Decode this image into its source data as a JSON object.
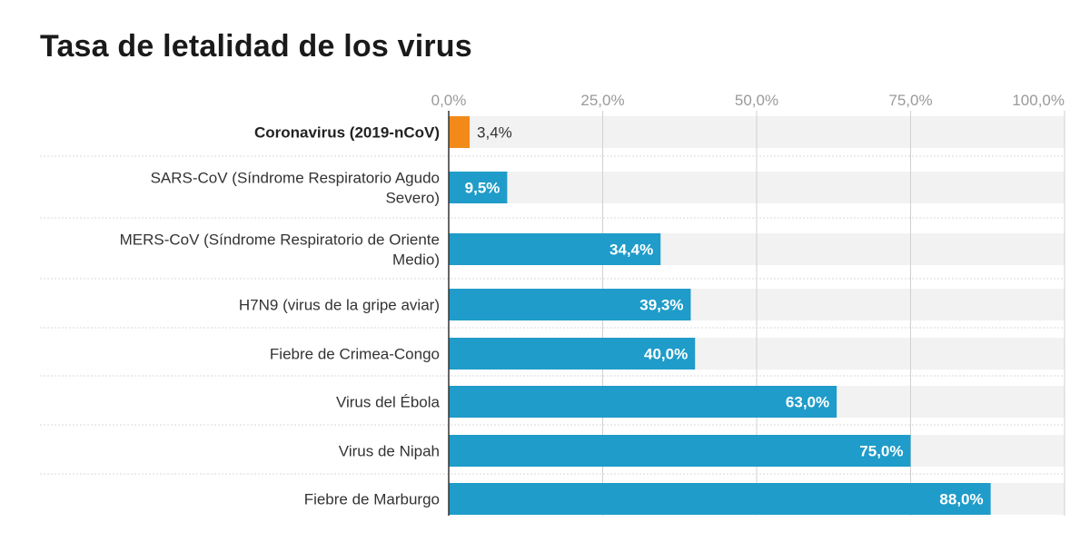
{
  "title": "Tasa de letalidad de los virus",
  "chart_data": {
    "type": "bar",
    "orientation": "horizontal",
    "title": "Tasa de letalidad de los virus",
    "xlim": [
      0,
      100
    ],
    "ticks": [
      "0,0%",
      "25,0%",
      "50,0%",
      "75,0%",
      "100,0%"
    ],
    "tick_values": [
      0,
      25,
      50,
      75,
      100
    ],
    "grid": true,
    "categories": [
      [
        "Coronavirus (2019-nCoV)"
      ],
      [
        "SARS-CoV (Síndrome Respiratorio Agudo",
        "Severo)"
      ],
      [
        "MERS-CoV (Síndrome Respiratorio de Oriente",
        "Medio)"
      ],
      [
        "H7N9 (virus de la gripe aviar)"
      ],
      [
        "Fiebre de Crimea-Congo"
      ],
      [
        "Virus del Ébola"
      ],
      [
        "Virus de Nipah"
      ],
      [
        "Fiebre de Marburgo"
      ]
    ],
    "values": [
      3.4,
      9.5,
      34.4,
      39.3,
      40.0,
      63.0,
      75.0,
      88.0
    ],
    "value_labels": [
      "3,4%",
      "9,5%",
      "34,4%",
      "39,3%",
      "40,0%",
      "63,0%",
      "75,0%",
      "88,0%"
    ],
    "highlight_index": 0,
    "colors": {
      "highlight": "#f28a1a",
      "bar": "#1f9cc9",
      "track": "#f2f2f2",
      "grid": "#d0d0d0"
    }
  }
}
